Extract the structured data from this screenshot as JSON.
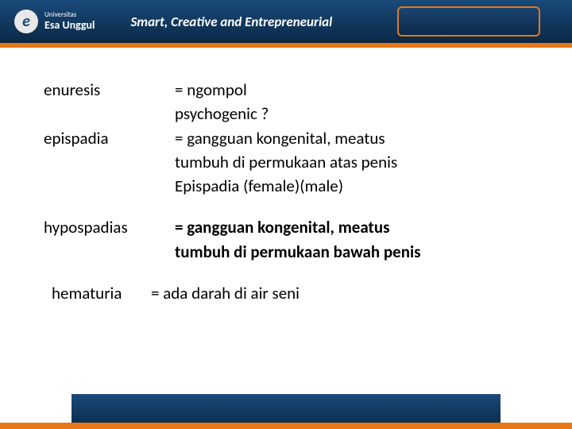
{
  "header": {
    "logo_letter": "e",
    "univ_small": "Universitas",
    "univ_name": "Esa Unggul",
    "tagline": "Smart, Creative and Entrepreneurial"
  },
  "terms": {
    "t1": "enuresis",
    "d1a": "=  ngompol",
    "d1b": "psychogenic ?",
    "t2": "epispadia",
    "d2a": "= gangguan kongenital, meatus",
    "d2b": "tumbuh di permukaan atas penis",
    "d2c": " Epispadia (female)(male)",
    "t3": "hypospadias",
    "d3a": "=  gangguan kongenital, meatus",
    "d3b": "   tumbuh di permukaan bawah penis",
    "t4": " hematuria",
    "d4": "=   ada darah di air seni"
  },
  "colors": {
    "header_bg_top": "#1a4a7a",
    "header_bg_bottom": "#0a2845",
    "orange": "#e67817",
    "text": "#000000",
    "white": "#ffffff"
  }
}
